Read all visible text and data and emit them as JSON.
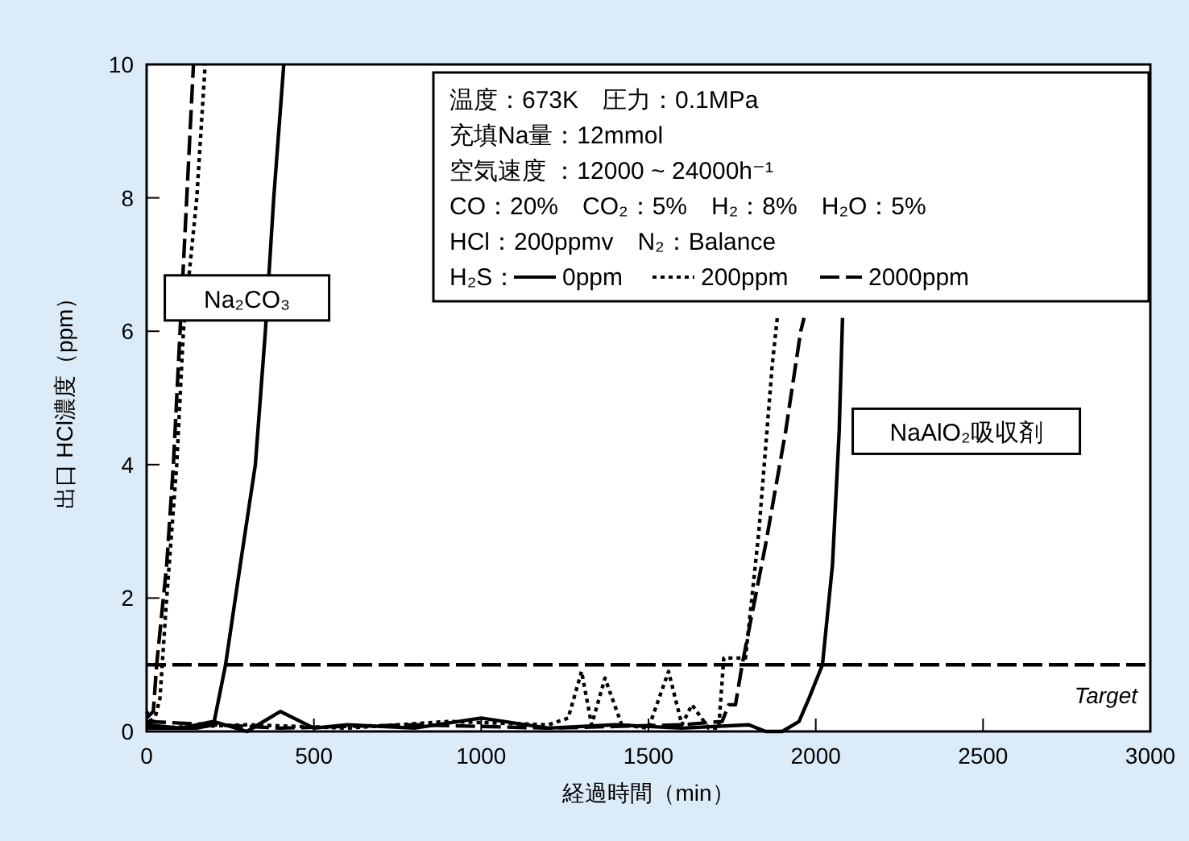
{
  "chart_data": {
    "type": "line",
    "xlabel": "経過時間（min）",
    "ylabel": "出口 HCl濃度（ppm）",
    "xlim": [
      0,
      3000
    ],
    "ylim": [
      0,
      10
    ],
    "xticks": [
      0,
      500,
      1000,
      1500,
      2000,
      2500,
      3000
    ],
    "yticks": [
      0,
      2,
      4,
      6,
      8,
      10
    ],
    "grid": false,
    "legend": "top right",
    "legend_title": "H₂S：",
    "series": [
      {
        "color": "#000000",
        "line_style": "solid",
        "x": [
          0,
          150,
          200,
          236,
          280,
          325,
          355,
          380,
          410
        ],
        "values": [
          0.05,
          0.05,
          0.1,
          1,
          2.5,
          4,
          6,
          8,
          10
        ]
      },
      {
        "color": "#000000",
        "line_style": "dotted",
        "x": [
          0,
          20,
          40,
          60,
          90,
          110,
          150,
          175
        ],
        "values": [
          0.3,
          0.1,
          0.5,
          2,
          4,
          6,
          8,
          10
        ]
      },
      {
        "color": "#000000",
        "line_style": "dashed",
        "x": [
          0,
          20,
          30,
          60,
          80,
          100,
          120,
          140
        ],
        "values": [
          0.2,
          0.3,
          1,
          2.5,
          4,
          6,
          8,
          10
        ]
      },
      {
        "name": "0ppm",
        "color": "#000000",
        "line_style": "solid",
        "x": [
          0,
          100,
          200,
          300,
          400,
          500,
          600,
          800,
          1000,
          1200,
          1400,
          1600,
          1800,
          1850,
          1900,
          1950,
          1980,
          2020,
          2050,
          2070,
          2080
        ],
        "values": [
          0.1,
          0.05,
          0.15,
          0,
          0.3,
          0.05,
          0.1,
          0.05,
          0.2,
          0.05,
          0.1,
          0.05,
          0.1,
          0,
          0,
          0.15,
          0.5,
          1,
          2.5,
          4.5,
          6.2
        ]
      },
      {
        "name": "200ppm",
        "color": "#000000",
        "line_style": "dotted",
        "x": [
          0,
          300,
          600,
          900,
          1200,
          1260,
          1300,
          1330,
          1370,
          1420,
          1500,
          1560,
          1600,
          1630,
          1680,
          1710,
          1725,
          1790,
          1830,
          1870,
          1885
        ],
        "values": [
          0.05,
          0.1,
          0.05,
          0.15,
          0.1,
          0.2,
          0.9,
          0.1,
          0.8,
          0.1,
          0.05,
          0.9,
          0.1,
          0.4,
          0.05,
          0.05,
          1.1,
          1.1,
          3,
          5.5,
          6.2
        ]
      },
      {
        "name": "2000ppm",
        "color": "#000000",
        "line_style": "dashed",
        "x": [
          0,
          400,
          800,
          1200,
          1600,
          1720,
          1740,
          1760,
          1780,
          1850,
          1910,
          1955,
          1965
        ],
        "values": [
          0.15,
          0.05,
          0.1,
          0.05,
          0.1,
          0.15,
          0.4,
          0.4,
          1,
          2.8,
          4.5,
          6,
          6.2
        ]
      }
    ],
    "ref_lines": [
      {
        "axis": "y",
        "value": 1,
        "label": "Target",
        "line_style": "dashed",
        "color": "#000000"
      }
    ],
    "annotations": [
      "温度：673K　圧力：0.1MPa",
      "充填Na量：12mmol",
      "空気速度 ：12000 ~ 24000h⁻¹",
      "CO：20%　CO₂：5%　H₂：8%　H₂O：5%",
      "HCl：200ppmv　N₂：Balance",
      "Na₂CO₃",
      "NaAlO₂吸収剤"
    ]
  }
}
